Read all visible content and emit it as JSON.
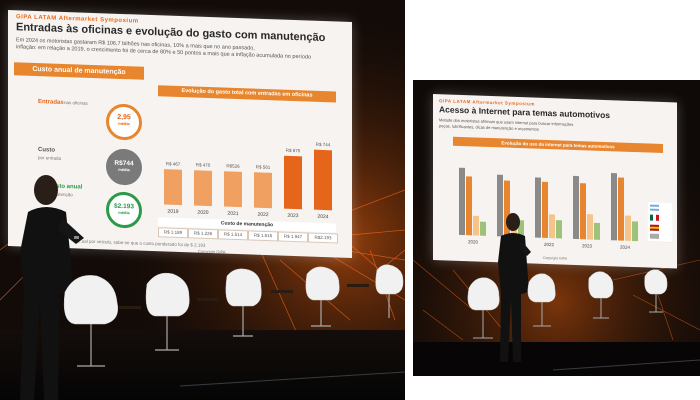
{
  "left_photo": {
    "slide": {
      "brand": "GIPA LATAM Aftermarket Symposium",
      "title": "Entradas às oficinas e evolução do gasto com manutenção",
      "bullet_1": "Em 2024 os motoristas gastaram R$ 106,7 bilhões nas oficinas, 10% a mais que no ano passado,",
      "bullet_2": "inflação: em relação a 2019, o crescimento foi de cerca de 80% e 50 pontos a mais que a inflação acumulada no período",
      "left_panel_title": "Custo anual de manutenção",
      "row_1_label": "Entradas",
      "row_1_sub": "nas oficinas",
      "row_1_value": "2,95",
      "row_1_unit": "média",
      "row_2_label": "Custo",
      "row_2_sub": "por entrada",
      "row_2_value": "R$744",
      "row_2_unit": "média",
      "row_3_label": "Custo anual",
      "row_3_sub": "manutenção",
      "row_3_value": "$2.193",
      "row_3_unit": "média",
      "chart_title": "Evolução do gasto total com entradas em oficinas",
      "chart_bottom_title": "Custo de manutenção",
      "footer_note": "...ual por veículo, sabe-se que o custo ponderado foi de $ 2.193",
      "copyright": "Copyright GIPA",
      "chart_data": {
        "type": "bar",
        "categories": [
          "2019",
          "2020",
          "2021",
          "2022",
          "2023",
          "2024"
        ],
        "values": [
          1.0,
          1.0,
          1.0,
          1.0,
          1.5,
          1.7
        ],
        "top_values": [
          "R$ 467",
          "R$ 470",
          "R$526",
          "R$ 561",
          "R$ 675",
          "R$ 744"
        ],
        "cost_row": [
          "R$ 1.189",
          "R$ 1.226",
          "R$ 1.514",
          "R$ 1.616",
          "R$ 1.947",
          "R$2.193"
        ]
      },
      "color_accent": "#e86a1e"
    }
  },
  "right_photo": {
    "slide": {
      "brand": "GIPA LATAM Aftermarket Symposium",
      "title": "Acesso à Internet para temas automotivos",
      "bullet_1": "Metade dos motoristas afirmam que usam internet para buscar informações",
      "bullet_2": "peças, lubrificantes, dicas de manutenção e orçamentos",
      "chart_title": "Evolução do uso da internet para temas automotivos",
      "chart_data": {
        "type": "bar",
        "categories": [
          "2020",
          "2021",
          "2022",
          "2023",
          "2024"
        ],
        "series": [
          {
            "values": [
              48,
              44,
              43,
              45,
              48
            ]
          },
          {
            "values": [
              42,
              40,
              40,
              40,
              45
            ]
          },
          {
            "values": [
              14,
              16,
              17,
              18,
              18
            ]
          },
          {
            "values": [
              10,
              12,
              13,
              12,
              14
            ]
          }
        ]
      },
      "copyright": "Copyright GIPA"
    }
  },
  "colors": {
    "orange": "#e7862f",
    "dark_orange": "#e5651a",
    "green": "#2d9a4a",
    "grey": "#7a7a7a"
  }
}
